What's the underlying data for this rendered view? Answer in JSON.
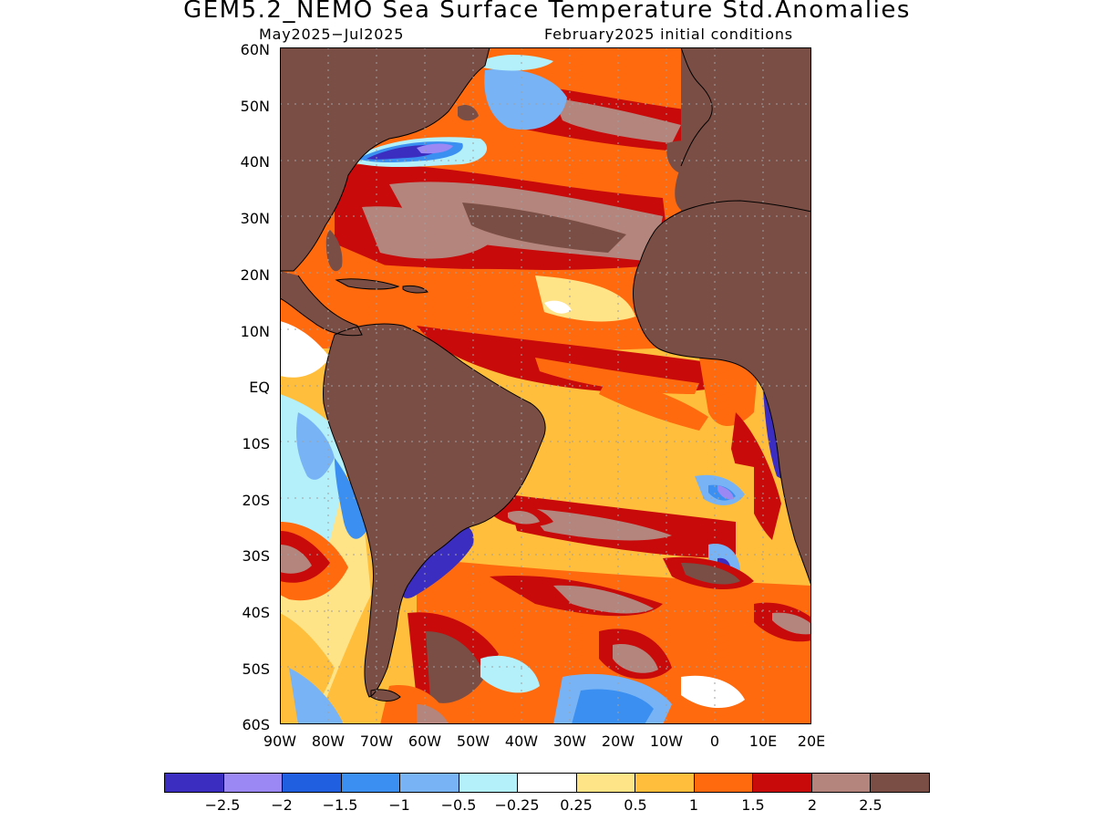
{
  "title": "GEM5.2_NEMO Sea Surface Temperature Std.Anomalies",
  "subtitle_left": "May2025−Jul2025",
  "subtitle_right": "February2025 initial conditions",
  "map": {
    "extent": {
      "lon": [
        -90,
        20
      ],
      "lat": [
        -60,
        60
      ]
    },
    "grid": "dotted",
    "lat_labels": [
      "60N",
      "50N",
      "40N",
      "30N",
      "20N",
      "10N",
      "EQ",
      "10S",
      "20S",
      "30S",
      "40S",
      "50S",
      "60S"
    ],
    "lon_labels": [
      "90W",
      "80W",
      "70W",
      "60W",
      "50W",
      "40W",
      "30W",
      "20W",
      "10W",
      "0",
      "10E",
      "20E"
    ],
    "land_color": "#7a4e44"
  },
  "colorbar": {
    "colors": [
      "#3b2dc0",
      "#9c88f5",
      "#1f5fe0",
      "#3b8ff0",
      "#78b4f5",
      "#b4f0fa",
      "#ffffff",
      "#ffe387",
      "#ffbe3c",
      "#ff6a0f",
      "#c80a0a",
      "#b4857c",
      "#7a4e44"
    ],
    "labels": [
      "−2.5",
      "−2",
      "−1.5",
      "−1",
      "−0.5",
      "−0.25",
      "0.25",
      "0.5",
      "1",
      "1.5",
      "2",
      "2.5"
    ]
  }
}
